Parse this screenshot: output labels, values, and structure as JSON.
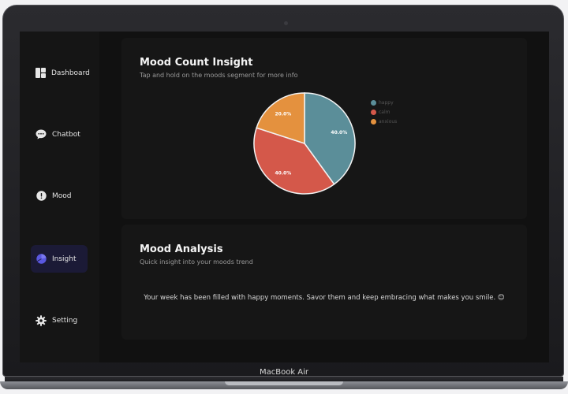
{
  "device": {
    "label": "MacBook Air"
  },
  "sidebar": {
    "items": [
      {
        "label": "Dashboard",
        "icon": "dashboard-icon"
      },
      {
        "label": "Chatbot",
        "icon": "chat-icon"
      },
      {
        "label": "Mood",
        "icon": "mood-icon"
      },
      {
        "label": "Insight",
        "icon": "insight-icon",
        "active": true
      },
      {
        "label": "Setting",
        "icon": "gear-icon"
      }
    ]
  },
  "mood_count": {
    "title": "Mood Count Insight",
    "subtitle": "Tap and hold on the moods segment for more info"
  },
  "mood_analysis": {
    "title": "Mood Analysis",
    "subtitle": "Quick insight into your moods trend",
    "message": "Your week has been filled with happy moments. Savor them and keep embracing what makes you smile. 😊"
  },
  "colors": {
    "happy": "#5b8e99",
    "calm": "#d4584a",
    "anxious": "#e4913e",
    "active_nav": "#1b1a36"
  },
  "chart_data": {
    "type": "pie",
    "slices": [
      {
        "name": "happy",
        "value": 40.0,
        "label": "40.0%"
      },
      {
        "name": "calm",
        "value": 40.0,
        "label": "40.0%"
      },
      {
        "name": "anxious",
        "value": 20.0,
        "label": "20.0%"
      }
    ],
    "legend": [
      "happy",
      "calm",
      "anxious"
    ],
    "legend_position": "right"
  }
}
